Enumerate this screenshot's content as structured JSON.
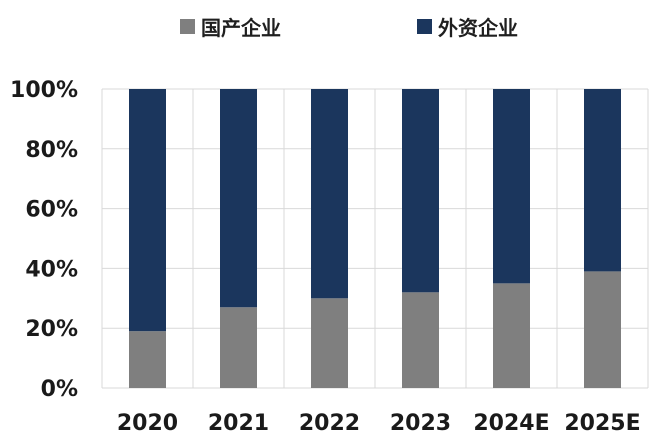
{
  "chart_data": {
    "type": "bar",
    "stacked": true,
    "title": "",
    "xlabel": "",
    "ylabel": "",
    "ylim": [
      0,
      100
    ],
    "yticks": [
      "0%",
      "20%",
      "40%",
      "60%",
      "80%",
      "100%"
    ],
    "categories": [
      "2020",
      "2021",
      "2022",
      "2023",
      "2024E",
      "2025E"
    ],
    "series": [
      {
        "name": "国产企业",
        "color": "#7f7f7f",
        "values": [
          19,
          27,
          30,
          32,
          35,
          39
        ]
      },
      {
        "name": "外资企业",
        "color": "#1b365d",
        "values": [
          81,
          73,
          70,
          68,
          65,
          61
        ]
      }
    ],
    "legend_position": "top-center",
    "grid": true
  }
}
